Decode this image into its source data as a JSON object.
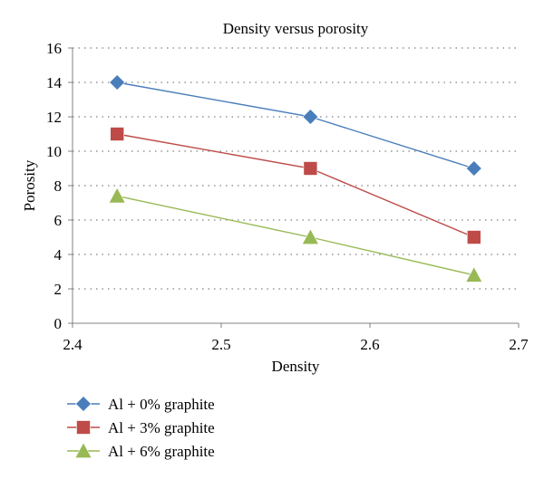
{
  "chart_data": {
    "type": "line",
    "title": "Density versus porosity",
    "xlabel": "Density",
    "ylabel": "Porosity",
    "xlim": [
      2.4,
      2.7
    ],
    "ylim": [
      0,
      16
    ],
    "x_ticks": [
      "2.4",
      "2.5",
      "2.6",
      "2.7"
    ],
    "y_ticks": [
      "0",
      "2",
      "4",
      "6",
      "8",
      "10",
      "12",
      "14",
      "16"
    ],
    "grid": "horizontal dotted",
    "legend_position": "bottom-left",
    "series": [
      {
        "name": "Al + 0% graphite",
        "color": "#4a7ebb",
        "marker": "diamond",
        "x": [
          2.43,
          2.56,
          2.67
        ],
        "y": [
          14,
          12,
          9
        ]
      },
      {
        "name": "Al + 3% graphite",
        "color": "#be4b48",
        "marker": "square",
        "x": [
          2.43,
          2.56,
          2.67
        ],
        "y": [
          11,
          9,
          5
        ]
      },
      {
        "name": "Al + 6% graphite",
        "color": "#98b954",
        "marker": "triangle",
        "x": [
          2.43,
          2.56,
          2.67
        ],
        "y": [
          7.4,
          5,
          2.8
        ]
      }
    ]
  }
}
